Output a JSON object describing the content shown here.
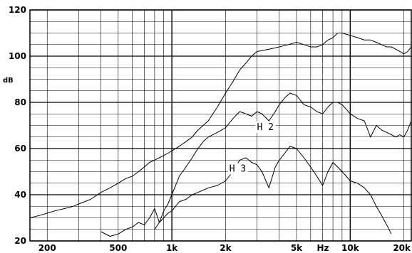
{
  "chart_data": {
    "type": "line",
    "title": "",
    "xlabel": "Hz",
    "ylabel": "dB",
    "x_scale": "log",
    "xlim": [
      160,
      22000
    ],
    "ylim": [
      20,
      120
    ],
    "grid": true,
    "y_ticks": [
      20,
      40,
      60,
      80,
      100,
      120
    ],
    "x_tick_labels": [
      {
        "value": 200,
        "label": "200"
      },
      {
        "value": 500,
        "label": "500"
      },
      {
        "value": 1000,
        "label": "1k"
      },
      {
        "value": 2000,
        "label": "2k"
      },
      {
        "value": 5000,
        "label": "5k"
      },
      {
        "value": 10000,
        "label": "10k"
      },
      {
        "value": 20000,
        "label": "20k"
      }
    ],
    "series": [
      {
        "name": "",
        "role": "fundamental",
        "x": [
          160,
          180,
          200,
          220,
          250,
          280,
          300,
          350,
          400,
          450,
          500,
          550,
          600,
          650,
          700,
          750,
          800,
          850,
          900,
          950,
          1000,
          1100,
          1200,
          1300,
          1400,
          1500,
          1600,
          1800,
          2000,
          2200,
          2400,
          2600,
          2800,
          3000,
          3500,
          4000,
          4500,
          5000,
          5500,
          6000,
          6500,
          7000,
          7500,
          8000,
          8500,
          9000,
          10000,
          11000,
          12000,
          13000,
          14000,
          15000,
          16000,
          17000,
          18000,
          19000,
          20000,
          21000,
          22000
        ],
        "y": [
          30,
          31,
          32,
          33,
          34,
          35,
          36,
          38,
          41,
          43,
          45,
          47,
          48,
          50,
          52,
          54,
          55,
          56,
          57,
          58,
          59,
          61,
          63,
          65,
          68,
          70,
          72,
          78,
          84,
          89,
          94,
          97,
          100,
          102,
          103,
          104,
          105,
          106,
          105,
          104,
          104,
          105,
          107,
          108,
          110,
          110,
          109,
          108,
          107,
          107,
          106,
          105,
          104,
          104,
          103,
          102,
          101,
          102,
          104
        ]
      },
      {
        "name": "H 2",
        "role": "second-harmonic",
        "x": [
          400,
          450,
          500,
          550,
          600,
          650,
          700,
          750,
          800,
          850,
          900,
          950,
          1000,
          1100,
          1200,
          1300,
          1400,
          1500,
          1600,
          1800,
          2000,
          2200,
          2400,
          2600,
          2800,
          3000,
          3200,
          3500,
          3800,
          4000,
          4300,
          4600,
          5000,
          5500,
          6000,
          6500,
          7000,
          7500,
          8000,
          8500,
          9000,
          9500,
          10000,
          11000,
          12000,
          13000,
          14000,
          15000,
          16000,
          17000,
          18000,
          19000,
          20000,
          21000,
          22000
        ],
        "y": [
          24,
          22,
          23,
          25,
          26,
          28,
          27,
          30,
          34,
          28,
          33,
          36,
          40,
          48,
          52,
          56,
          60,
          63,
          65,
          67,
          69,
          73,
          76,
          75,
          74,
          76,
          75,
          72,
          76,
          79,
          82,
          84,
          83,
          79,
          78,
          76,
          75,
          78,
          80,
          80,
          79,
          77,
          75,
          73,
          72,
          65,
          70,
          68,
          67,
          66,
          65,
          66,
          65,
          68,
          72
        ]
      },
      {
        "name": "H 3",
        "role": "third-harmonic",
        "x": [
          800,
          850,
          900,
          950,
          1000,
          1100,
          1200,
          1300,
          1400,
          1500,
          1600,
          1800,
          2000,
          2200,
          2400,
          2600,
          2800,
          3000,
          3200,
          3500,
          3800,
          4000,
          4300,
          4600,
          5000,
          5500,
          6000,
          6500,
          7000,
          7500,
          8000,
          8500,
          9000,
          9500,
          10000,
          11000,
          12000,
          13000,
          14000,
          15000,
          16000,
          17000
        ],
        "y": [
          25,
          28,
          30,
          32,
          33,
          37,
          38,
          40,
          41,
          42,
          43,
          44,
          46,
          50,
          55,
          56,
          54,
          53,
          50,
          43,
          52,
          55,
          58,
          61,
          60,
          56,
          52,
          48,
          44,
          50,
          54,
          52,
          50,
          48,
          46,
          45,
          43,
          40,
          35,
          31,
          27,
          23
        ]
      }
    ]
  }
}
